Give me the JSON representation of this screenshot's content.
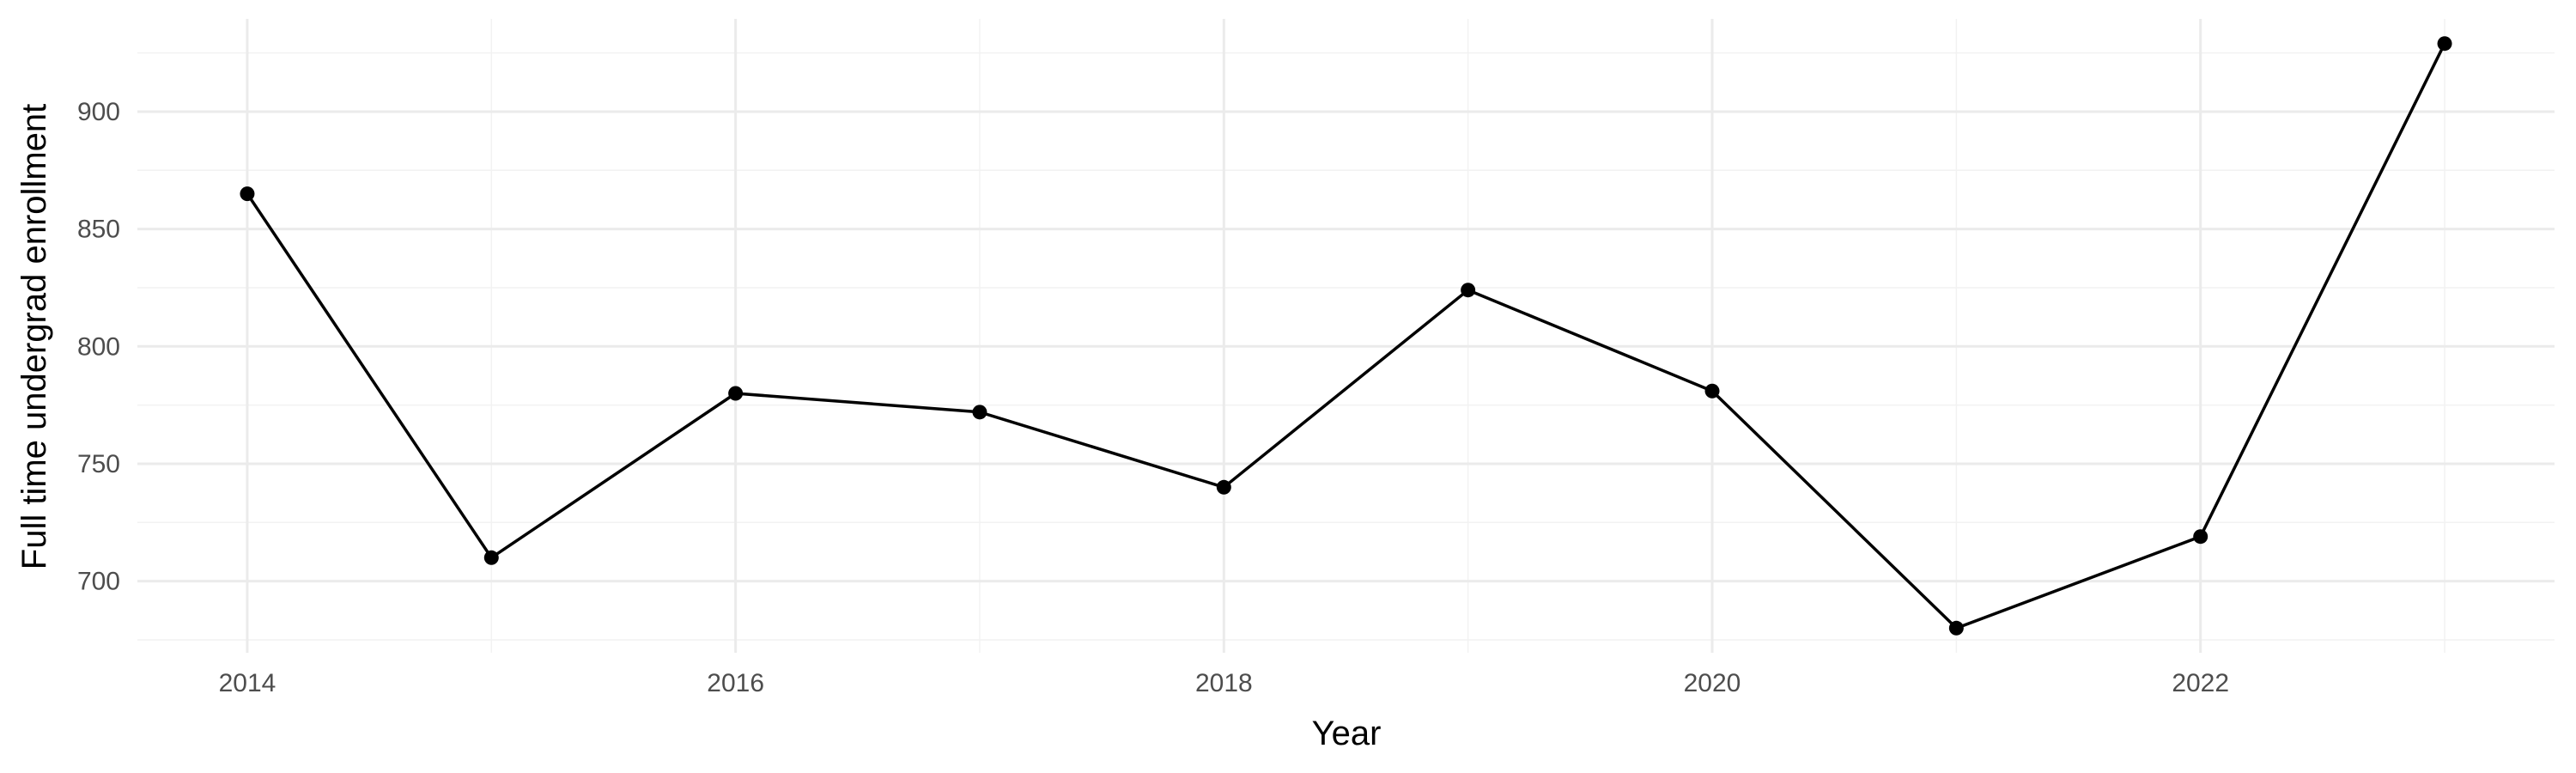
{
  "chart_data": {
    "type": "line",
    "title": "",
    "xlabel": "Year",
    "ylabel": "Full time undergrad enrollment",
    "x": [
      2014,
      2015,
      2016,
      2017,
      2018,
      2019,
      2020,
      2021,
      2022,
      2023
    ],
    "series": [
      {
        "values": [
          865,
          710,
          780,
          772,
          740,
          824,
          781,
          680,
          719,
          929
        ]
      }
    ],
    "xlim": [
      2013.55,
      2023.45
    ],
    "ylim": [
      669.5,
      939.5
    ],
    "x_ticks": [
      2014,
      2016,
      2018,
      2020,
      2022
    ],
    "x_tick_labels": [
      "2014",
      "2016",
      "2018",
      "2020",
      "2022"
    ],
    "y_ticks": [
      700,
      750,
      800,
      850,
      900
    ],
    "y_tick_labels": [
      "700",
      "750",
      "800",
      "850",
      "900"
    ],
    "grid": true,
    "legend": "none",
    "colors": {
      "line": "#000000",
      "point": "#000000",
      "grid": "#ebebeb",
      "background": "#ffffff"
    }
  }
}
